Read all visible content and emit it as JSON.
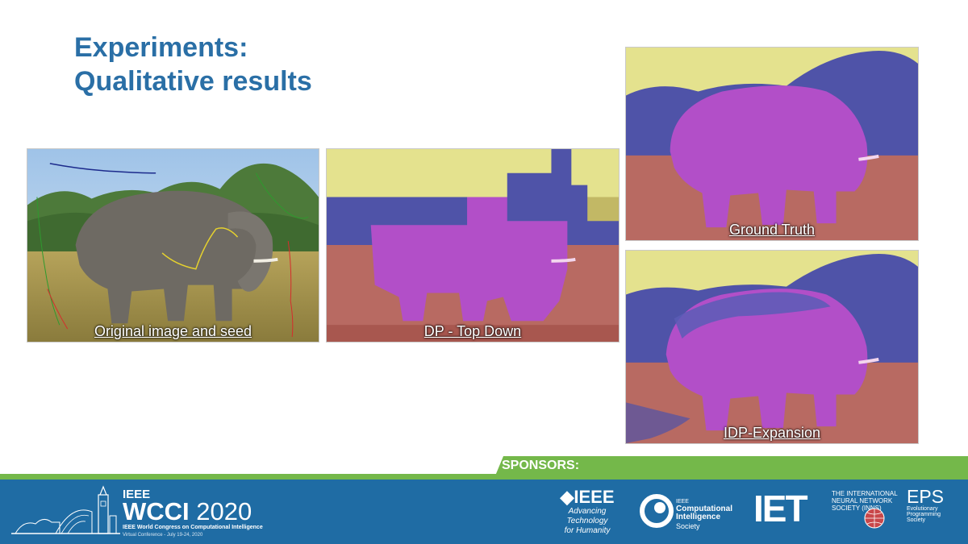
{
  "slide": {
    "title_line1": "Experiments:",
    "title_line2": "Qualitative results"
  },
  "panels": {
    "original": {
      "caption": "Original image and seed"
    },
    "dp": {
      "caption": "DP - Top Down"
    },
    "ground_truth": {
      "caption": "Ground Truth"
    },
    "idp": {
      "caption": "IDP-Expansion"
    }
  },
  "colors": {
    "title": "#2a6fa6",
    "footer_blue": "#1f6ca4",
    "sponsor_green": "#74b84a",
    "label_sky": "#e5e58c",
    "label_trees": "#4f53a8",
    "label_elephant": "#b24fc8",
    "label_ground": "#b86a62"
  },
  "footer": {
    "sponsors_label": "SPONSORS:",
    "event_ieee": "IEEE",
    "event_name_bold": "WCCI",
    "event_year": "2020",
    "event_full": "IEEE World Congress on Computational Intelligence",
    "event_dates": "Virtual Conference - July 19-24, 2020",
    "sponsor_ieee_name": "IEEE",
    "sponsor_ieee_tag1": "Advancing Technology",
    "sponsor_ieee_tag2": "for Humanity",
    "sponsor_cis_1": "IEEE",
    "sponsor_cis_2": "Computational Intelligence",
    "sponsor_cis_3": "Society",
    "sponsor_iet": "IET",
    "sponsor_inns": "THE INTERNATIONAL NEURAL NETWORK SOCIETY (INNS)",
    "sponsor_eps_1": "EPS",
    "sponsor_eps_2": "Evolutionary",
    "sponsor_eps_3": "Programming",
    "sponsor_eps_4": "Society"
  }
}
